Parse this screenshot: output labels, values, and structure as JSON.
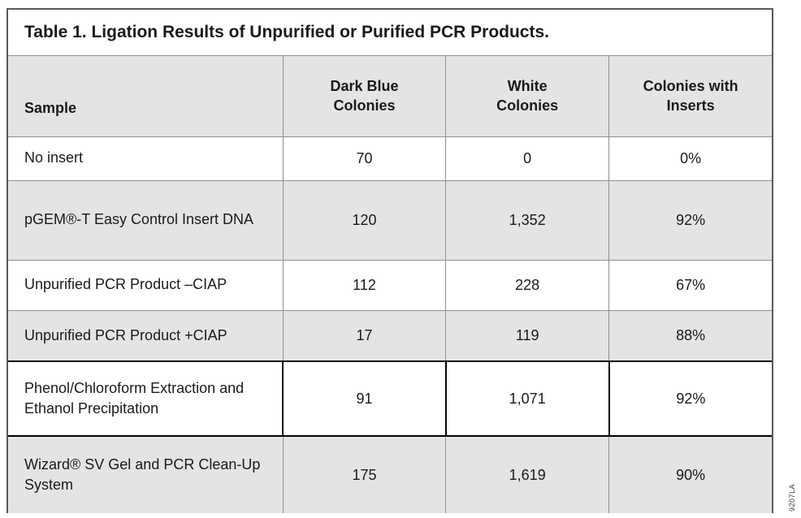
{
  "title": "Table 1. Ligation Results of Unpurified or Purified PCR Products.",
  "part_number": "9207LA",
  "table": {
    "columns": [
      "Sample",
      "Dark Blue\nColonies",
      "White\nColonies",
      "Colonies with\nInserts"
    ],
    "rows": [
      {
        "sample": "No insert",
        "dark_blue": "70",
        "white": "0",
        "inserts": "0%"
      },
      {
        "sample": "pGEM®-T Easy Control Insert DNA",
        "dark_blue": "120",
        "white": "1,352",
        "inserts": "92%"
      },
      {
        "sample": "Unpurified PCR Product –CIAP",
        "dark_blue": "112",
        "white": "228",
        "inserts": "67%"
      },
      {
        "sample": "Unpurified PCR Product +CIAP",
        "dark_blue": "17",
        "white": "119",
        "inserts": "88%"
      },
      {
        "sample": "Phenol/Chloroform Extraction and Ethanol Precipitation",
        "dark_blue": "91",
        "white": "1,071",
        "inserts": "92%"
      },
      {
        "sample": "Wizard® SV Gel and PCR Clean-Up System",
        "dark_blue": "175",
        "white": "1,619",
        "inserts": "90%"
      }
    ]
  },
  "colors": {
    "row_shade": "#e4e4e4",
    "grid_line": "#8f8f8f",
    "section_line": "#000000",
    "outer_border": "#58595b"
  }
}
